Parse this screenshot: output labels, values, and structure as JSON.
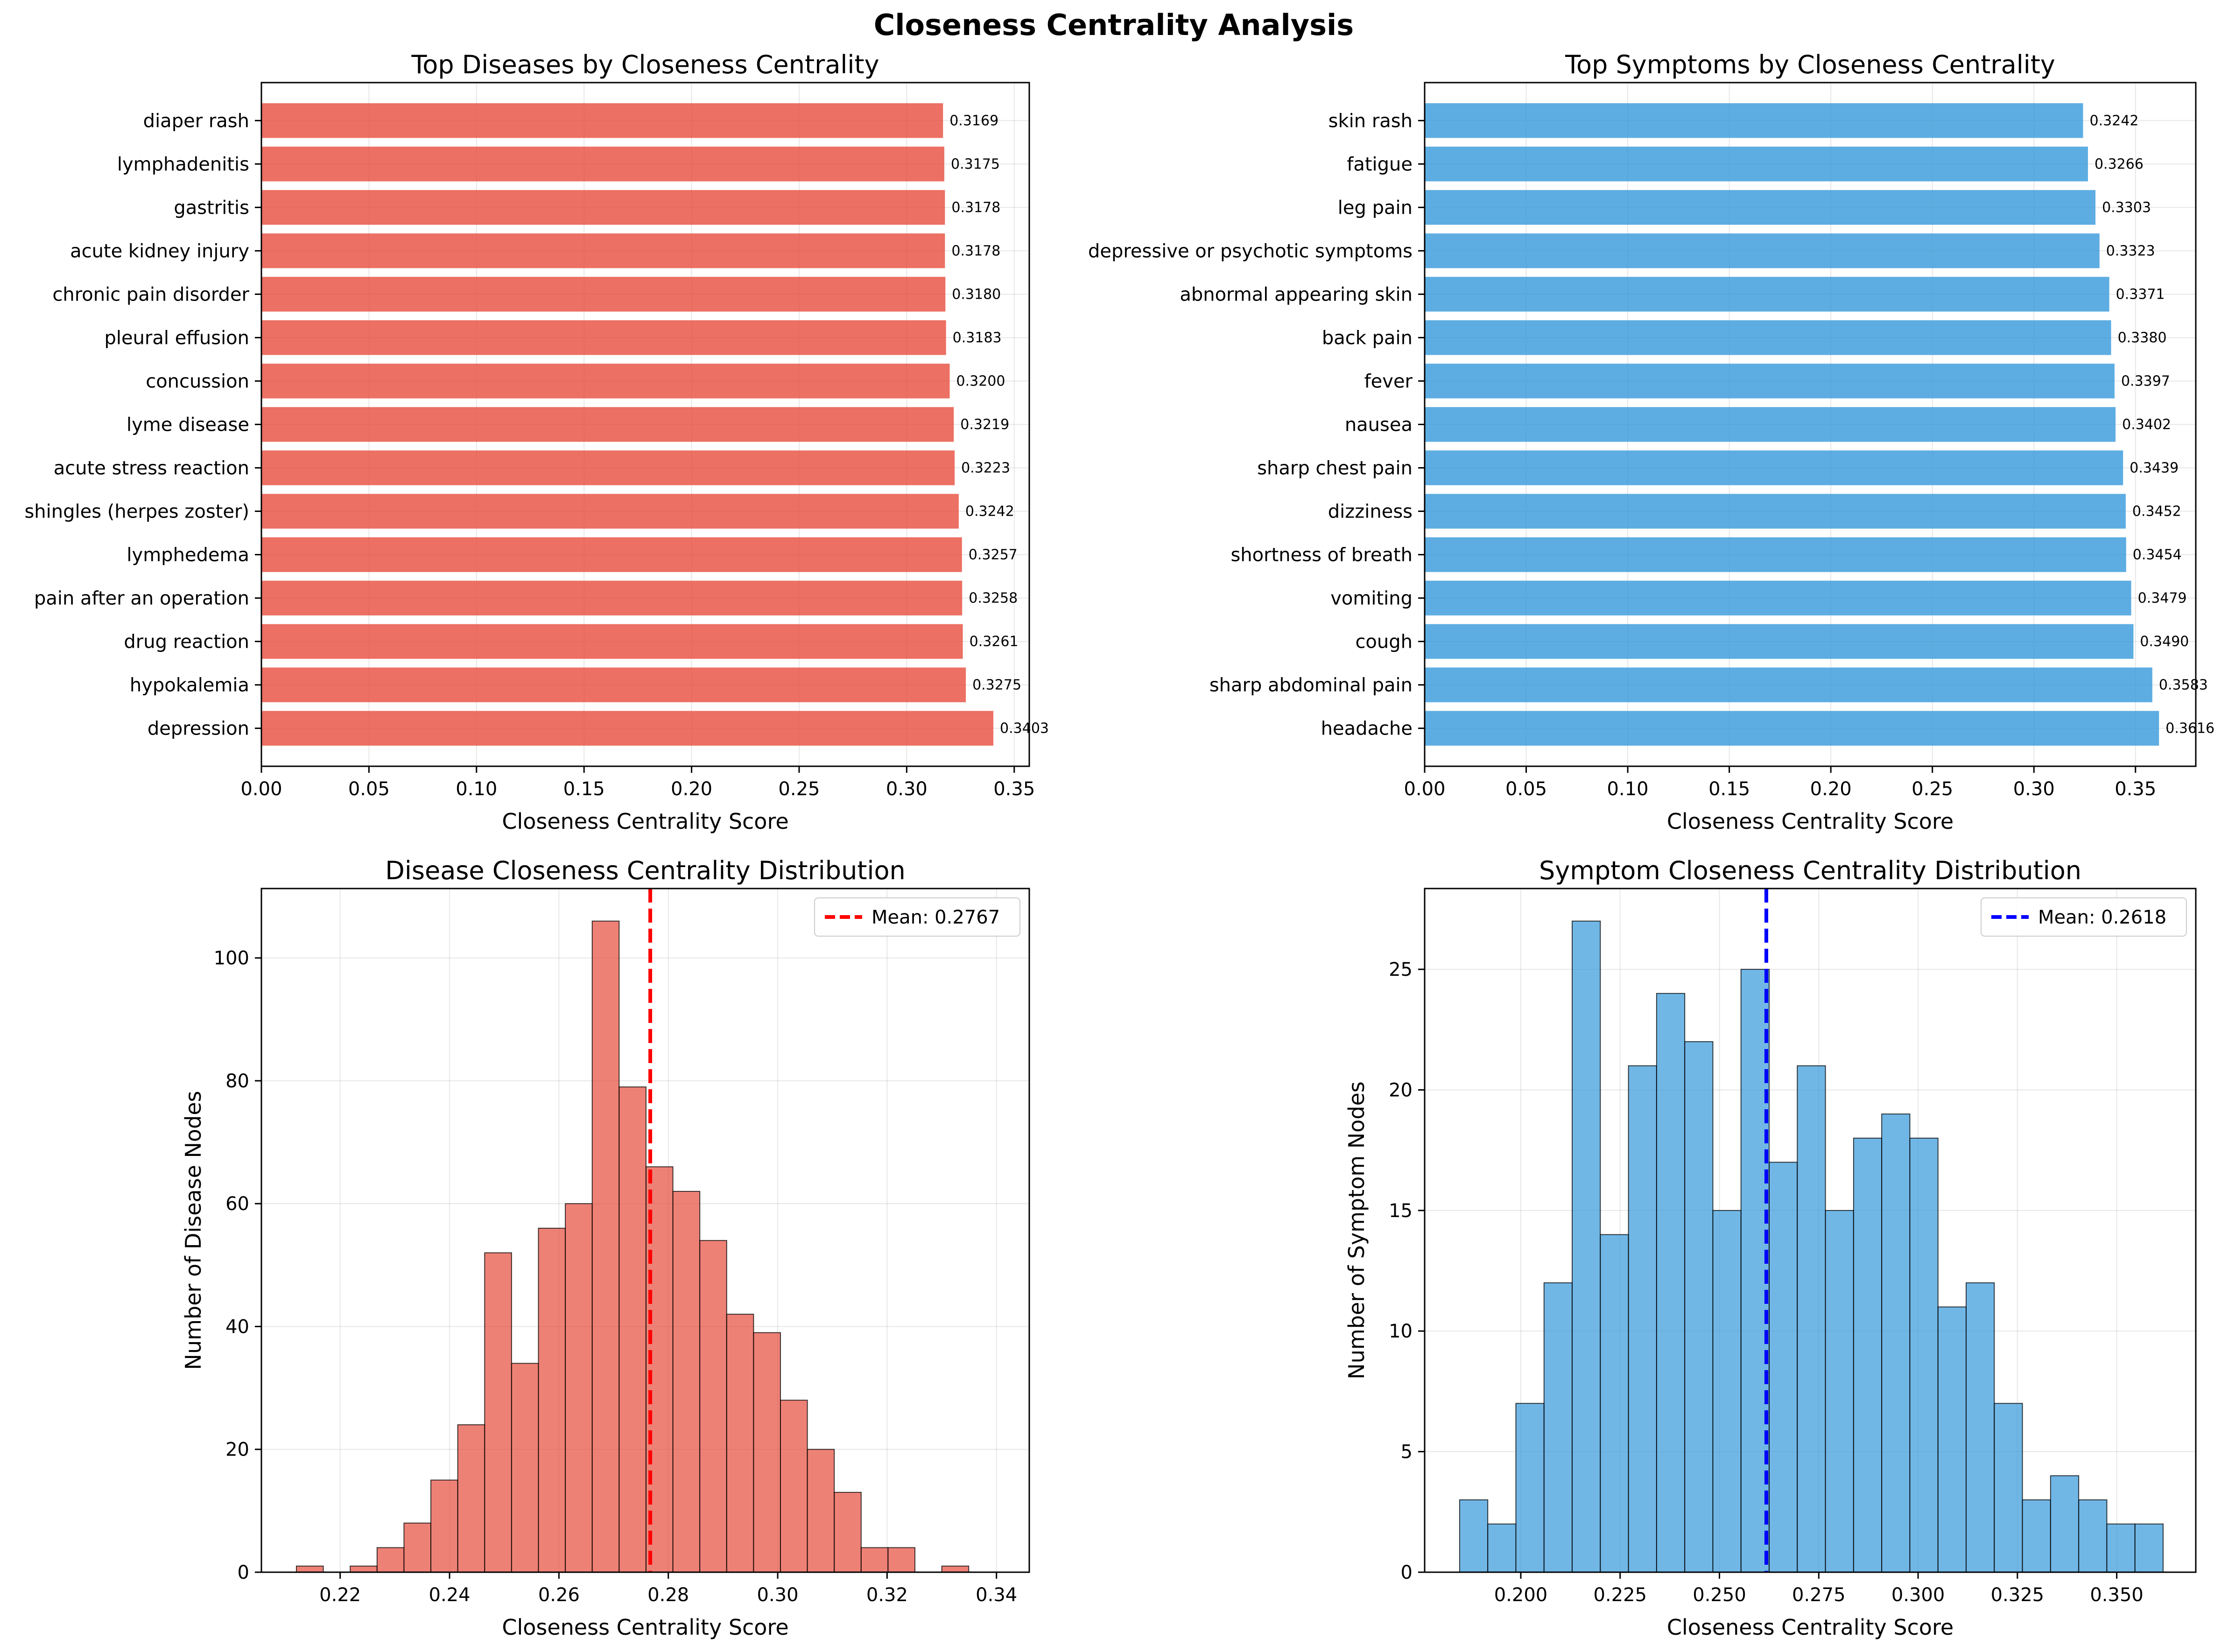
{
  "suptitle": "Closeness Centrality Analysis",
  "colors": {
    "disease": "#e74c3c",
    "symptom": "#3498db",
    "disease_mean": "#ff0000",
    "symptom_mean": "#0000ff"
  },
  "chart_data": [
    {
      "type": "bar",
      "orientation": "horizontal",
      "title": "Top Diseases by Closeness Centrality",
      "xlabel": "Closeness Centrality Score",
      "ylabel": "",
      "xlim": [
        0,
        0.357
      ],
      "xticks": [
        "0.00",
        "0.05",
        "0.10",
        "0.15",
        "0.20",
        "0.25",
        "0.30",
        "0.35"
      ],
      "categories": [
        "depression",
        "hypokalemia",
        "drug reaction",
        "pain after an operation",
        "lymphedema",
        "shingles (herpes zoster)",
        "acute stress reaction",
        "lyme disease",
        "concussion",
        "pleural effusion",
        "chronic pain disorder",
        "acute kidney injury",
        "gastritis",
        "lymphadenitis",
        "diaper rash"
      ],
      "values": [
        0.3403,
        0.3275,
        0.3261,
        0.3258,
        0.3257,
        0.3242,
        0.3223,
        0.3219,
        0.32,
        0.3183,
        0.318,
        0.3178,
        0.3178,
        0.3175,
        0.3169
      ],
      "labels": [
        "0.3403",
        "0.3275",
        "0.3261",
        "0.3258",
        "0.3257",
        "0.3242",
        "0.3223",
        "0.3219",
        "0.3200",
        "0.3183",
        "0.3180",
        "0.3178",
        "0.3178",
        "0.3175",
        "0.3169"
      ],
      "grid": true
    },
    {
      "type": "bar",
      "orientation": "horizontal",
      "title": "Top Symptoms by Closeness Centrality",
      "xlabel": "Closeness Centrality Score",
      "ylabel": "",
      "xlim": [
        0,
        0.3797
      ],
      "xticks": [
        "0.00",
        "0.05",
        "0.10",
        "0.15",
        "0.20",
        "0.25",
        "0.30",
        "0.35"
      ],
      "categories": [
        "headache",
        "sharp abdominal pain",
        "cough",
        "vomiting",
        "shortness of breath",
        "dizziness",
        "sharp chest pain",
        "nausea",
        "fever",
        "back pain",
        "abnormal appearing skin",
        "depressive or psychotic symptoms",
        "leg pain",
        "fatigue",
        "skin rash"
      ],
      "values": [
        0.3616,
        0.3583,
        0.349,
        0.3479,
        0.3454,
        0.3452,
        0.3439,
        0.3402,
        0.3397,
        0.338,
        0.3371,
        0.3323,
        0.3303,
        0.3266,
        0.3242
      ],
      "labels": [
        "0.3616",
        "0.3583",
        "0.3490",
        "0.3479",
        "0.3454",
        "0.3452",
        "0.3439",
        "0.3402",
        "0.3397",
        "0.3380",
        "0.3371",
        "0.3323",
        "0.3303",
        "0.3266",
        "0.3242"
      ],
      "grid": true
    },
    {
      "type": "histogram",
      "title": "Disease Closeness Centrality Distribution",
      "xlabel": "Closeness Centrality Score",
      "ylabel": "Number of Disease Nodes",
      "xlim": [
        0.2056,
        0.346
      ],
      "ylim": [
        0,
        111.3
      ],
      "xticks": [
        "0.22",
        "0.24",
        "0.26",
        "0.28",
        "0.30",
        "0.32",
        "0.34"
      ],
      "yticks": [
        "0",
        "20",
        "40",
        "60",
        "80",
        "100"
      ],
      "bin_start": 0.212,
      "bin_width": 0.004917,
      "counts": [
        1,
        0,
        1,
        4,
        8,
        15,
        24,
        52,
        34,
        56,
        60,
        106,
        79,
        66,
        62,
        54,
        42,
        39,
        28,
        20,
        13,
        4,
        4,
        0,
        1
      ],
      "mean": 0.2767,
      "mean_label": "Mean: 0.2767",
      "legend": "top-right",
      "grid": true
    },
    {
      "type": "histogram",
      "title": "Symptom Closeness Centrality Distribution",
      "xlabel": "Closeness Centrality Score",
      "ylabel": "Number of Symptom Nodes",
      "xlim": [
        0.1758,
        0.3699
      ],
      "ylim": [
        0,
        28.35
      ],
      "xticks": [
        "0.200",
        "0.225",
        "0.250",
        "0.275",
        "0.300",
        "0.325",
        "0.350"
      ],
      "yticks": [
        "0",
        "5",
        "10",
        "15",
        "20",
        "25"
      ],
      "bin_start": 0.1846,
      "bin_width": 0.007083,
      "counts": [
        3,
        2,
        7,
        12,
        27,
        14,
        21,
        24,
        22,
        15,
        25,
        17,
        21,
        15,
        18,
        19,
        18,
        11,
        12,
        7,
        3,
        4,
        3,
        2,
        2
      ],
      "mean": 0.2618,
      "mean_label": "Mean: 0.2618",
      "legend": "top-right",
      "grid": true
    }
  ]
}
